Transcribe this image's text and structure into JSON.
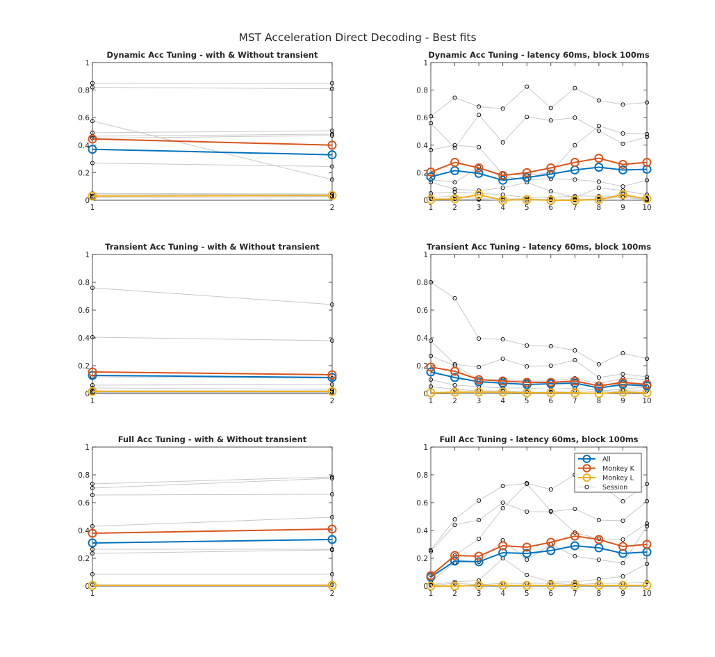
{
  "figure": {
    "suptitle": "MST Acceleration Direct Decoding - Best fits",
    "colors": {
      "all": "#0072BD",
      "monkey_k": "#D95319",
      "monkey_l": "#EDB120",
      "session_line": "#c8c8c8",
      "session_marker": "#000000",
      "axes": "#262626"
    }
  },
  "legend": {
    "entries": [
      {
        "label": "All",
        "color": "#0072BD"
      },
      {
        "label": "Monkey K",
        "color": "#D95319"
      },
      {
        "label": "Monkey L",
        "color": "#EDB120"
      },
      {
        "label": "Session",
        "color": "#000000"
      }
    ],
    "placement": "top-right of bottom-right panel"
  },
  "chart_data": [
    {
      "type": "line",
      "title": "Dynamic Acc Tuning - with & Without transient",
      "x": [
        1,
        2
      ],
      "xlim": [
        1,
        2
      ],
      "ylim": [
        0,
        1
      ],
      "yticks": [
        0,
        0.2,
        0.4,
        0.6,
        0.8,
        1
      ],
      "series": [
        {
          "name": "All",
          "values": [
            0.37,
            0.33
          ]
        },
        {
          "name": "Monkey K",
          "values": [
            0.445,
            0.4
          ]
        },
        {
          "name": "Monkey L",
          "values": [
            0.03,
            0.035
          ]
        }
      ],
      "sessions": [
        [
          0.85,
          0.85
        ],
        [
          0.82,
          0.81
        ],
        [
          0.575,
          0.15
        ],
        [
          0.49,
          0.505
        ],
        [
          0.465,
          0.48
        ],
        [
          0.45,
          0.47
        ],
        [
          0.27,
          0.245
        ],
        [
          0.05,
          0.045
        ],
        [
          0.045,
          0.04
        ],
        [
          0.03,
          0.03
        ],
        [
          0.02,
          0.025
        ]
      ]
    },
    {
      "type": "line",
      "title": "Dynamic Acc Tuning - latency 60ms, block 100ms",
      "x": [
        1,
        2,
        3,
        4,
        5,
        6,
        7,
        8,
        9,
        10
      ],
      "xlim": [
        1,
        10
      ],
      "ylim": [
        0,
        1
      ],
      "yticks": [
        0,
        0.2,
        0.4,
        0.6,
        0.8,
        1
      ],
      "series": [
        {
          "name": "All",
          "values": [
            0.17,
            0.215,
            0.195,
            0.145,
            0.165,
            0.19,
            0.22,
            0.24,
            0.22,
            0.225
          ]
        },
        {
          "name": "Monkey K",
          "values": [
            0.205,
            0.275,
            0.235,
            0.18,
            0.2,
            0.235,
            0.275,
            0.305,
            0.26,
            0.275
          ]
        },
        {
          "name": "Monkey L",
          "values": [
            0.005,
            0.01,
            0.04,
            0.0,
            0.005,
            0.0,
            0.0,
            0.005,
            0.04,
            0.01
          ]
        }
      ],
      "sessions": [
        [
          0.61,
          0.745,
          0.68,
          0.665,
          0.825,
          0.67,
          0.815,
          0.725,
          0.695,
          0.71
        ],
        [
          0.56,
          0.38,
          0.62,
          0.42,
          0.605,
          0.58,
          0.6,
          0.505,
          0.41,
          0.46
        ],
        [
          0.365,
          0.4,
          0.385,
          0.19,
          0.18,
          0.2,
          0.4,
          0.54,
          0.485,
          0.48
        ],
        [
          0.15,
          0.13,
          0.24,
          0.17,
          0.15,
          0.155,
          0.15,
          0.135,
          0.1,
          0.145
        ],
        [
          0.13,
          0.08,
          0.07,
          0.09,
          0.13,
          0.065,
          0.02,
          0.09,
          0.07,
          0.04
        ],
        [
          0.05,
          0.06,
          0.05,
          0.04,
          0.02,
          0.02,
          0.03,
          0.03,
          0.03,
          0.01
        ],
        [
          0.02,
          0.03,
          0.01,
          0.01,
          0.01,
          0.005,
          0.005,
          0.01,
          0.02,
          0.005
        ],
        [
          0.01,
          0.01,
          0.005,
          0.0,
          0.0,
          0.0,
          0.0,
          0.0,
          0.05,
          0.0
        ]
      ]
    },
    {
      "type": "line",
      "title": "Transient Acc Tuning - with & Without transient",
      "x": [
        1,
        2
      ],
      "xlim": [
        1,
        2
      ],
      "ylim": [
        0,
        1
      ],
      "yticks": [
        0,
        0.2,
        0.4,
        0.6,
        0.8,
        1
      ],
      "series": [
        {
          "name": "All",
          "values": [
            0.13,
            0.115
          ]
        },
        {
          "name": "Monkey K",
          "values": [
            0.155,
            0.135
          ]
        },
        {
          "name": "Monkey L",
          "values": [
            0.015,
            0.015
          ]
        }
      ],
      "sessions": [
        [
          0.76,
          0.64
        ],
        [
          0.405,
          0.38
        ],
        [
          0.12,
          0.11
        ],
        [
          0.06,
          0.065
        ],
        [
          0.04,
          0.03
        ],
        [
          0.02,
          0.02
        ],
        [
          0.01,
          0.01
        ],
        [
          0.005,
          0.005
        ]
      ]
    },
    {
      "type": "line",
      "title": "Transient Acc Tuning - latency 60ms, block 100ms",
      "x": [
        1,
        2,
        3,
        4,
        5,
        6,
        7,
        8,
        9,
        10
      ],
      "xlim": [
        1,
        10
      ],
      "ylim": [
        0,
        1
      ],
      "yticks": [
        0,
        0.2,
        0.4,
        0.6,
        0.8,
        1
      ],
      "series": [
        {
          "name": "All",
          "values": [
            0.155,
            0.115,
            0.085,
            0.075,
            0.065,
            0.07,
            0.075,
            0.04,
            0.065,
            0.055
          ]
        },
        {
          "name": "Monkey K",
          "values": [
            0.19,
            0.16,
            0.1,
            0.09,
            0.08,
            0.08,
            0.09,
            0.055,
            0.08,
            0.065
          ]
        },
        {
          "name": "Monkey L",
          "values": [
            0.005,
            0.01,
            0.01,
            0.01,
            0.005,
            0.005,
            0.005,
            0.0,
            0.01,
            0.005
          ]
        }
      ],
      "sessions": [
        [
          0.8,
          0.685,
          0.395,
          0.39,
          0.345,
          0.34,
          0.31,
          0.21,
          0.29,
          0.25
        ],
        [
          0.38,
          0.21,
          0.19,
          0.25,
          0.195,
          0.2,
          0.24,
          0.115,
          0.14,
          0.12
        ],
        [
          0.27,
          0.2,
          0.1,
          0.1,
          0.09,
          0.09,
          0.11,
          0.07,
          0.11,
          0.1
        ],
        [
          0.1,
          0.06,
          0.05,
          0.04,
          0.04,
          0.03,
          0.04,
          0.02,
          0.03,
          0.05
        ],
        [
          0.05,
          0.03,
          0.02,
          0.02,
          0.01,
          0.01,
          0.02,
          0.01,
          0.02,
          0.02
        ]
      ]
    },
    {
      "type": "line",
      "title": "Full Acc Tuning - with & Without transient",
      "x": [
        1,
        2
      ],
      "xlim": [
        1,
        2
      ],
      "ylim": [
        0,
        1
      ],
      "yticks": [
        0,
        0.2,
        0.4,
        0.6,
        0.8,
        1
      ],
      "series": [
        {
          "name": "All",
          "values": [
            0.31,
            0.335
          ]
        },
        {
          "name": "Monkey K",
          "values": [
            0.38,
            0.41
          ]
        },
        {
          "name": "Monkey L",
          "values": [
            0.005,
            0.005
          ]
        }
      ],
      "sessions": [
        [
          0.735,
          0.785
        ],
        [
          0.705,
          0.775
        ],
        [
          0.655,
          0.66
        ],
        [
          0.43,
          0.495
        ],
        [
          0.265,
          0.265
        ],
        [
          0.235,
          0.26
        ],
        [
          0.085,
          0.085
        ],
        [
          0.01,
          0.01
        ]
      ]
    },
    {
      "type": "line",
      "title": "Full Acc Tuning - latency 60ms, block 100ms",
      "x": [
        1,
        2,
        3,
        4,
        5,
        6,
        7,
        8,
        9,
        10
      ],
      "xlim": [
        1,
        10
      ],
      "ylim": [
        0,
        1
      ],
      "yticks": [
        0,
        0.2,
        0.4,
        0.6,
        0.8,
        1
      ],
      "series": [
        {
          "name": "All",
          "values": [
            0.065,
            0.18,
            0.175,
            0.24,
            0.235,
            0.255,
            0.29,
            0.275,
            0.235,
            0.245
          ]
        },
        {
          "name": "Monkey K",
          "values": [
            0.075,
            0.22,
            0.215,
            0.29,
            0.28,
            0.315,
            0.36,
            0.335,
            0.285,
            0.3
          ]
        },
        {
          "name": "Monkey L",
          "values": [
            0.0,
            0.0,
            0.005,
            0.005,
            0.005,
            0.005,
            0.005,
            0.005,
            0.005,
            0.005
          ]
        }
      ],
      "sessions": [
        [
          0.26,
          0.48,
          0.615,
          0.72,
          0.74,
          0.695,
          0.8,
          0.73,
          0.61,
          0.735
        ],
        [
          0.25,
          0.44,
          0.475,
          0.6,
          0.535,
          0.535,
          0.555,
          0.475,
          0.47,
          0.61
        ],
        [
          0.08,
          0.22,
          0.34,
          0.56,
          0.735,
          0.54,
          0.385,
          0.34,
          0.335,
          0.45
        ],
        [
          0.03,
          0.17,
          0.175,
          0.33,
          0.19,
          0.3,
          0.215,
          0.19,
          0.165,
          0.43
        ],
        [
          0.01,
          0.03,
          0.04,
          0.2,
          0.08,
          0.03,
          0.03,
          0.05,
          0.07,
          0.16
        ],
        [
          0.005,
          0.02,
          0.01,
          0.02,
          0.02,
          0.02,
          0.01,
          0.02,
          0.02,
          0.03
        ]
      ]
    }
  ]
}
